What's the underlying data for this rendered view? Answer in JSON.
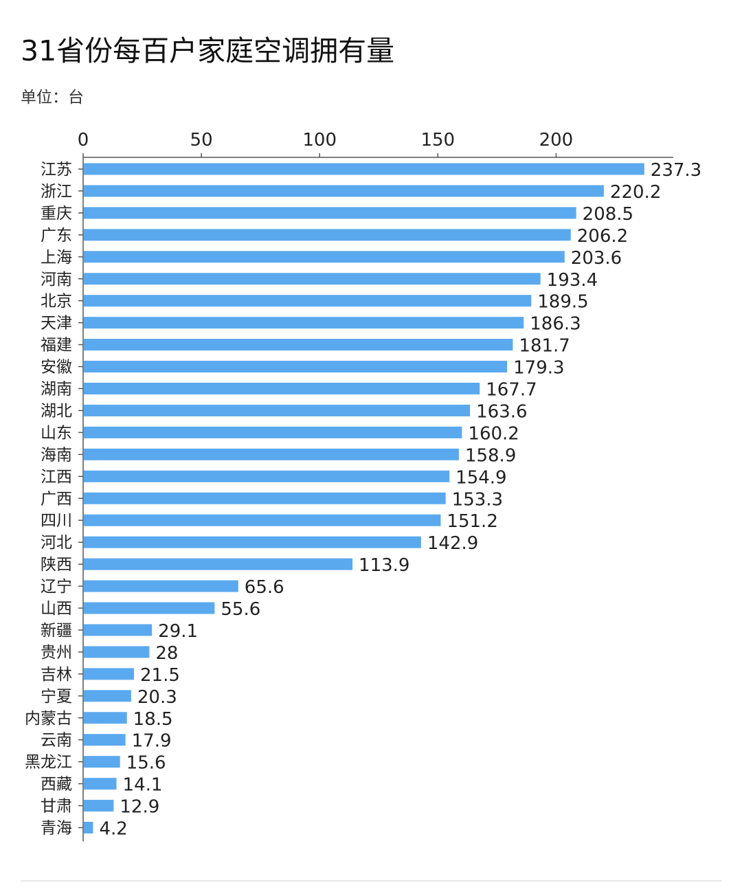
{
  "title": "31省份每百户家庭空调拥有量",
  "subtitle": "单位：台",
  "colors": {
    "bar": "#5aa9ee",
    "axis": "#555555",
    "text": "#222222"
  },
  "chart_data": {
    "type": "bar",
    "orientation": "horizontal",
    "title": "31省份每百户家庭空调拥有量",
    "subtitle": "单位：台",
    "xlabel": "",
    "ylabel": "",
    "x_axis_position": "top",
    "xlim": [
      0,
      240
    ],
    "xticks": [
      0,
      50,
      100,
      150,
      200
    ],
    "grid": false,
    "categories": [
      "江苏",
      "浙江",
      "重庆",
      "广东",
      "上海",
      "河南",
      "北京",
      "天津",
      "福建",
      "安徽",
      "湖南",
      "湖北",
      "山东",
      "海南",
      "江西",
      "广西",
      "四川",
      "河北",
      "陕西",
      "辽宁",
      "山西",
      "新疆",
      "贵州",
      "吉林",
      "宁夏",
      "内蒙古",
      "云南",
      "黑龙江",
      "西藏",
      "甘肃",
      "青海"
    ],
    "values": [
      237.3,
      220.2,
      208.5,
      206.2,
      203.6,
      193.4,
      189.5,
      186.3,
      181.7,
      179.3,
      167.7,
      163.6,
      160.2,
      158.9,
      154.9,
      153.3,
      151.2,
      142.9,
      113.9,
      65.6,
      55.6,
      29.1,
      28,
      21.5,
      20.3,
      18.5,
      17.9,
      15.6,
      14.1,
      12.9,
      4.2
    ],
    "value_labels": [
      "237.3",
      "220.2",
      "208.5",
      "206.2",
      "203.6",
      "193.4",
      "189.5",
      "186.3",
      "181.7",
      "179.3",
      "167.7",
      "163.6",
      "160.2",
      "158.9",
      "154.9",
      "153.3",
      "151.2",
      "142.9",
      "113.9",
      "65.6",
      "55.6",
      "29.1",
      "28",
      "21.5",
      "20.3",
      "18.5",
      "17.9",
      "15.6",
      "14.1",
      "12.9",
      "4.2"
    ]
  }
}
